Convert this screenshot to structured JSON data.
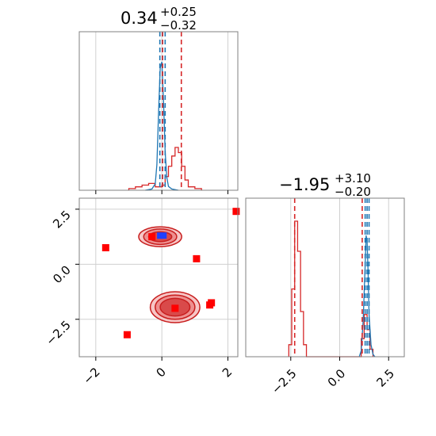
{
  "chart_data": {
    "type": "corner",
    "panels": [
      {
        "id": "hist-param-1",
        "type": "histogram",
        "title": {
          "value": "0.34",
          "plus": "+0.25",
          "minus": "−0.32"
        },
        "xlim": [
          -2.5,
          2.3
        ],
        "xticks": [
          -2,
          0,
          2
        ],
        "grid": true,
        "series": [
          {
            "color": "#d62728",
            "bin_edges": [
              -1.0,
              -0.8,
              -0.6,
              -0.4,
              -0.2,
              0.0,
              0.1,
              0.2,
              0.3,
              0.4,
              0.5,
              0.6,
              0.7,
              0.8,
              1.0,
              1.2
            ],
            "counts": [
              0.01,
              0.02,
              0.03,
              0.04,
              0.02,
              0.03,
              0.08,
              0.14,
              0.2,
              0.25,
              0.22,
              0.14,
              0.06,
              0.02,
              0.01
            ]
          },
          {
            "color": "#1f77b4",
            "x": [
              -0.5,
              -0.3,
              -0.2,
              -0.15,
              -0.1,
              -0.05,
              0.0,
              0.05,
              0.1,
              0.15,
              0.2,
              0.3,
              0.5
            ],
            "y": [
              0.0,
              0.01,
              0.05,
              0.2,
              0.6,
              0.95,
              1.0,
              0.7,
              0.3,
              0.1,
              0.03,
              0.01,
              0.0
            ]
          }
        ],
        "vlines": [
          {
            "x": -0.06,
            "color": "#1f77b4"
          },
          {
            "x": 0.02,
            "color": "#1f77b4"
          },
          {
            "x": 0.1,
            "color": "#1f77b4"
          },
          {
            "x": 0.02,
            "color": "#d62728"
          },
          {
            "x": 0.59,
            "color": "#d62728"
          }
        ]
      },
      {
        "id": "scatter-2d",
        "type": "contour-scatter",
        "xlim": [
          -2.5,
          2.3
        ],
        "ylim": [
          -4.2,
          3.0
        ],
        "xticks": [
          -2,
          0,
          2
        ],
        "yticks": [
          2.5,
          0.0,
          -2.5
        ],
        "xtick_labels": [
          "−2",
          "0",
          "2"
        ],
        "ytick_labels": [
          "2.5",
          "0.0",
          "−2.5"
        ],
        "grid": true,
        "red_markers": [
          [
            -1.7,
            0.75
          ],
          [
            -0.3,
            1.25
          ],
          [
            1.05,
            0.25
          ],
          [
            2.25,
            2.4
          ],
          [
            0.4,
            -2.0
          ],
          [
            1.45,
            -1.85
          ],
          [
            1.5,
            -1.75
          ],
          [
            -1.05,
            -3.2
          ]
        ],
        "blue_markers": [
          [
            -0.05,
            1.3
          ],
          [
            0.05,
            1.3
          ]
        ],
        "contours": [
          {
            "cx": -0.05,
            "cy": 1.25,
            "rx": [
              0.65,
              0.5,
              0.35
            ],
            "ry": [
              0.45,
              0.35,
              0.22
            ]
          },
          {
            "cx": 0.4,
            "cy": -1.95,
            "rx": [
              0.75,
              0.6,
              0.45
            ],
            "ry": [
              0.7,
              0.55,
              0.4
            ]
          }
        ]
      },
      {
        "id": "hist-param-2",
        "type": "histogram",
        "title": {
          "value": "−1.95",
          "plus": "+3.10",
          "minus": "−0.20"
        },
        "xlim": [
          -4.8,
          3.3
        ],
        "xticks": [
          -2.5,
          0.0,
          2.5
        ],
        "xtick_labels": [
          "−2.5",
          "0.0",
          "2.5"
        ],
        "grid": true,
        "series": [
          {
            "color": "#d62728",
            "bin_edges": [
              -2.6,
              -2.45,
              -2.3,
              -2.15,
              -2.0,
              -1.85,
              -1.7,
              1.1,
              1.25,
              1.4,
              1.55,
              1.7
            ],
            "counts": [
              0.08,
              0.45,
              0.9,
              0.7,
              0.3,
              0.08,
              0.0,
              0.12,
              0.28,
              0.18,
              0.05
            ]
          },
          {
            "color": "#1f77b4",
            "x": [
              1.0,
              1.1,
              1.2,
              1.3,
              1.35,
              1.4,
              1.45,
              1.5,
              1.6,
              1.7,
              1.8
            ],
            "y": [
              0.0,
              0.05,
              0.3,
              0.75,
              1.0,
              0.95,
              0.7,
              0.35,
              0.1,
              0.02,
              0.0
            ]
          }
        ],
        "vlines": [
          {
            "x": -2.3,
            "color": "#d62728"
          },
          {
            "x": 1.15,
            "color": "#d62728"
          },
          {
            "x": 1.3,
            "color": "#1f77b4"
          },
          {
            "x": 1.4,
            "color": "#1f77b4"
          },
          {
            "x": 1.5,
            "color": "#1f77b4"
          }
        ]
      }
    ]
  }
}
